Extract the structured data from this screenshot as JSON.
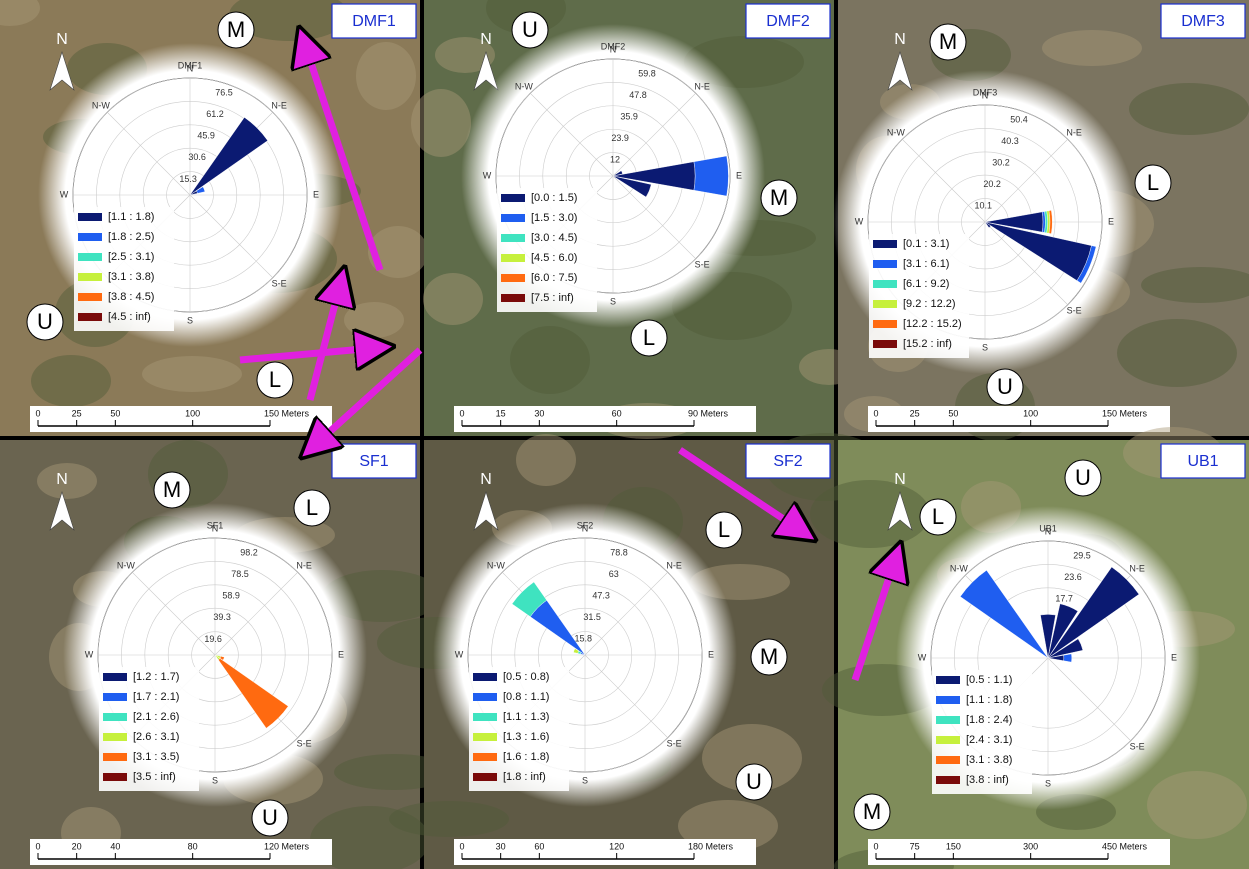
{
  "north_label": "N",
  "bin_colors": [
    "#0b1a72",
    "#1f5ef0",
    "#3fe3c0",
    "#c6f03c",
    "#ff6a10",
    "#7a0a0a"
  ],
  "panels": [
    {
      "label": "DMF1",
      "letters": [
        "M",
        "U",
        "L"
      ],
      "rose": {
        "title": "DMF1",
        "rlim": [
          0,
          76.5
        ],
        "rticks": [
          15.3,
          30.6,
          45.9,
          61.2,
          76.5
        ],
        "directions": [
          "N",
          "N-E",
          "E",
          "S-E",
          "S",
          "W",
          "N-W"
        ],
        "legend": [
          "[1.1 : 1.8)",
          "[1.8 : 2.5)",
          "[2.5 : 3.1)",
          "[3.1 : 3.8)",
          "[3.8 : 4.5)",
          "[4.5 : inf)"
        ],
        "petals": [
          {
            "direction": 45,
            "values": [
              62
            ]
          },
          {
            "direction": 67.5,
            "values": [
              5,
              5
            ]
          }
        ]
      },
      "scale": [
        0,
        25,
        50,
        100,
        {
          "value": 150,
          "label": "150 Meters"
        }
      ]
    },
    {
      "label": "DMF2",
      "letters": [
        "U",
        "M",
        "L"
      ],
      "rose": {
        "title": "DMF2",
        "rlim": [
          0,
          59.8
        ],
        "rticks": [
          12.0,
          23.9,
          35.9,
          47.8,
          59.8
        ],
        "directions": [
          "N",
          "N-E",
          "E",
          "S-E",
          "S",
          "W",
          "N-W"
        ],
        "legend": [
          "[0.0 : 1.5)",
          "[1.5 : 3.0)",
          "[3.0 : 4.5)",
          "[4.5 : 6.0)",
          "[6.0 : 7.5)",
          "[7.5 : inf)"
        ],
        "petals": [
          {
            "direction": 90,
            "values": [
              42,
              17
            ]
          },
          {
            "direction": 112.5,
            "values": [
              20
            ]
          },
          {
            "direction": 67.5,
            "values": [
              5
            ]
          }
        ]
      },
      "scale": [
        0,
        15,
        30,
        60,
        {
          "value": 90,
          "label": "90 Meters"
        }
      ]
    },
    {
      "label": "DMF3",
      "letters": [
        "M",
        "L",
        "U"
      ],
      "rose": {
        "title": "DMF3",
        "rlim": [
          0,
          50.4
        ],
        "rticks": [
          10.1,
          20.2,
          30.2,
          40.3,
          50.4
        ],
        "directions": [
          "N",
          "N-E",
          "E",
          "S-E",
          "S",
          "W",
          "N-W"
        ],
        "legend": [
          "[0.1 : 3.1)",
          "[3.1 : 6.1)",
          "[6.1 : 9.2)",
          "[9.2 : 12.2)",
          "[12.2 : 15.2)",
          "[15.2 : inf)"
        ],
        "petals": [
          {
            "direction": 112.5,
            "values": [
              47,
              2
            ]
          },
          {
            "direction": 90,
            "values": [
              25,
              1,
              1,
              1,
              1
            ]
          },
          {
            "direction": 135,
            "values": [
              3
            ]
          }
        ]
      },
      "scale": [
        0,
        25,
        50,
        100,
        {
          "value": 150,
          "label": "150 Meters"
        }
      ]
    },
    {
      "label": "SF1",
      "letters": [
        "M",
        "L",
        "U"
      ],
      "rose": {
        "title": "SF1",
        "rlim": [
          0,
          98.2
        ],
        "rticks": [
          19.6,
          39.3,
          58.9,
          78.5,
          98.2
        ],
        "directions": [
          "N",
          "N-E",
          "E",
          "S-E",
          "S",
          "W",
          "N-W"
        ],
        "legend": [
          "[1.2 : 1.7)",
          "[1.7 : 2.1)",
          "[2.1 : 2.6)",
          "[2.6 : 3.1)",
          "[3.1 : 3.5)",
          "[3.5 : inf)"
        ],
        "petals": [
          {
            "direction": 135,
            "values": [
              0,
              0,
              0,
              5,
              70
            ]
          },
          {
            "direction": 112.5,
            "values": [
              0,
              0,
              0,
              5,
              3
            ]
          }
        ]
      },
      "scale": [
        0,
        20,
        40,
        80,
        {
          "value": 120,
          "label": "120 Meters"
        }
      ]
    },
    {
      "label": "SF2",
      "letters": [
        "L",
        "M",
        "U"
      ],
      "rose": {
        "title": "SF2",
        "rlim": [
          0,
          78.8
        ],
        "rticks": [
          15.8,
          31.5,
          47.3,
          63.0,
          78.8
        ],
        "directions": [
          "N",
          "N-E",
          "E",
          "S-E",
          "S",
          "W",
          "N-W"
        ],
        "legend": [
          "[0.5 : 0.8)",
          "[0.8 : 1.1)",
          "[1.1 : 1.3)",
          "[1.3 : 1.6)",
          "[1.6 : 1.8)",
          "[1.8 : inf)"
        ],
        "petals": [
          {
            "direction": 315,
            "values": [
              0,
              45,
              15
            ]
          },
          {
            "direction": 292.5,
            "values": [
              0,
              3,
              2,
              3
            ]
          }
        ]
      },
      "scale": [
        0,
        30,
        60,
        120,
        {
          "value": 180,
          "label": "180 Meters"
        }
      ]
    },
    {
      "label": "UB1",
      "letters": [
        "U",
        "L",
        "M"
      ],
      "rose": {
        "title": "UB1",
        "rlim": [
          0,
          29.5
        ],
        "rticks": [
          17.7,
          23.6,
          29.5
        ],
        "directions": [
          "N",
          "N-E",
          "E",
          "S-E",
          "S",
          "W",
          "N-W"
        ],
        "legend": [
          "[0.5 : 1.1)",
          "[1.1 : 1.8)",
          "[1.8 : 2.4)",
          "[2.4 : 3.1)",
          "[3.1 : 3.8)",
          "[3.8 : inf)"
        ],
        "petals": [
          {
            "direction": 315,
            "values": [
              0,
              27
            ]
          },
          {
            "direction": 45,
            "values": [
              28
            ]
          },
          {
            "direction": 22.5,
            "values": [
              14
            ]
          },
          {
            "direction": 0,
            "values": [
              11
            ]
          },
          {
            "direction": 67.5,
            "values": [
              9
            ]
          },
          {
            "direction": 90,
            "values": [
              4,
              2
            ]
          }
        ]
      },
      "scale": [
        0,
        75,
        150,
        300,
        {
          "value": 450,
          "label": "450 Meters"
        }
      ]
    }
  ]
}
